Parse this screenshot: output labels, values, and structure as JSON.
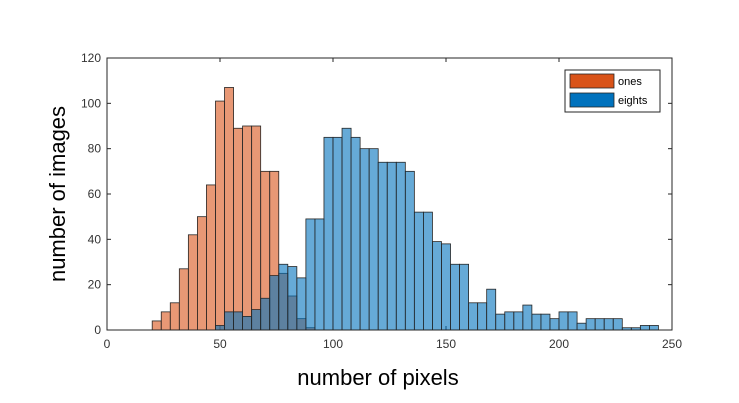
{
  "chart_data": {
    "type": "bar",
    "title": "",
    "xlabel": "number of pixels",
    "ylabel": "number of images",
    "xlim": [
      0,
      250
    ],
    "ylim": [
      0,
      120
    ],
    "xticks": [
      "0",
      "50",
      "100",
      "150",
      "200",
      "250"
    ],
    "yticks": [
      "0",
      "20",
      "40",
      "60",
      "80",
      "100",
      "120"
    ],
    "bin_width": 4,
    "legend_placement": "top-right",
    "series": [
      {
        "name": "ones",
        "color": "#D95319",
        "opacity": 0.6,
        "bin_starts": [
          20,
          24,
          28,
          32,
          36,
          40,
          44,
          48,
          52,
          56,
          60,
          64,
          68,
          72,
          76,
          80,
          84,
          88
        ],
        "values": [
          4,
          8,
          12,
          27,
          42,
          50,
          64,
          101,
          107,
          89,
          90,
          90,
          70,
          70,
          25,
          15,
          5,
          1
        ]
      },
      {
        "name": "eights",
        "color": "#0072BD",
        "opacity": 0.6,
        "bin_starts": [
          48,
          52,
          56,
          60,
          64,
          68,
          72,
          76,
          80,
          84,
          88,
          92,
          96,
          100,
          104,
          108,
          112,
          116,
          120,
          124,
          128,
          132,
          136,
          140,
          144,
          148,
          152,
          156,
          160,
          164,
          168,
          172,
          176,
          180,
          184,
          188,
          192,
          196,
          200,
          204,
          208,
          212,
          216,
          220,
          224,
          228,
          232,
          236,
          240
        ],
        "values": [
          2,
          8,
          8,
          6,
          9,
          14,
          24,
          29,
          28,
          23,
          49,
          49,
          85,
          85,
          89,
          85,
          80,
          80,
          74,
          74,
          74,
          70,
          52,
          52,
          39,
          38,
          29,
          29,
          12,
          12,
          18,
          7,
          8,
          8,
          11,
          7,
          7,
          5,
          8,
          8,
          3,
          5,
          5,
          5,
          5,
          1,
          1,
          2,
          2
        ]
      }
    ]
  }
}
